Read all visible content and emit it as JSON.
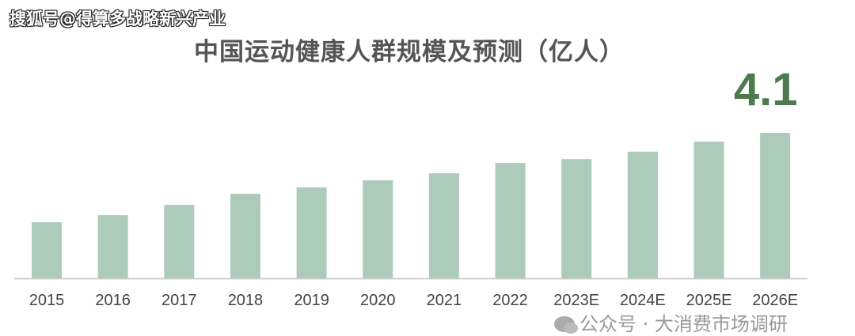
{
  "source_label": "搜狐号@得算多战略新兴产业",
  "watermark": "公众号 · 大消费市场调研",
  "chart_data": {
    "type": "bar",
    "title": "中国运动健康人群规模及预测（亿人）",
    "xlabel": "",
    "ylabel": "",
    "categories": [
      "2015",
      "2016",
      "2017",
      "2018",
      "2019",
      "2020",
      "2021",
      "2022",
      "2023E",
      "2024E",
      "2025E",
      "2026E"
    ],
    "values": [
      1.58,
      1.78,
      2.07,
      2.38,
      2.56,
      2.76,
      2.96,
      3.25,
      3.36,
      3.57,
      3.85,
      4.1
    ],
    "ylim": [
      0,
      4.1
    ],
    "grid": false,
    "annotations": [
      {
        "category": "2026E",
        "text": "4.1"
      }
    ],
    "colors": {
      "bar": "#adcbbb",
      "annotation": "#4e7a4e",
      "axis": "#d0d0d0",
      "tick": "#444444"
    }
  }
}
